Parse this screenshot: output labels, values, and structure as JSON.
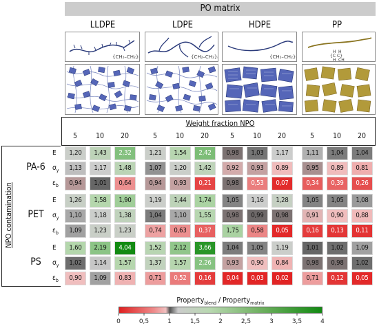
{
  "header": {
    "title": "PO matrix"
  },
  "matrices": [
    {
      "name": "LLDPE",
      "color": "#2a3a7a",
      "fill": "#5566b8",
      "formula": "{CH₂–CH₂}ₙ"
    },
    {
      "name": "LDPE",
      "color": "#2a3a7a",
      "fill": "#5566b8",
      "formula": "{CH₂–CH₂}ₙ"
    },
    {
      "name": "HDPE",
      "color": "#2a3a7a",
      "fill": "#5566b8",
      "formula": "{CH₂–CH₂}ₙ"
    },
    {
      "name": "PP",
      "color": "#8a7420",
      "fill": "#b29a3a",
      "formula": ""
    }
  ],
  "weight_fraction_title": "Weight fraction NPO",
  "weight_fractions": [
    "5",
    "10",
    "20"
  ],
  "y_axis_title": "NPO contamination",
  "contaminants": [
    "PA-6",
    "PET",
    "PS"
  ],
  "properties": [
    "E",
    "σ",
    "ε"
  ],
  "property_subscripts": [
    "",
    "y",
    "b"
  ],
  "table": [
    [
      [
        "1,20",
        "1,43",
        "2,32"
      ],
      [
        "1,21",
        "1,54",
        "2,42"
      ],
      [
        "0,98",
        "1,03",
        "1,17"
      ],
      [
        "1,11",
        "1,04",
        "1,04"
      ]
    ],
    [
      [
        "1,13",
        "1,17",
        "1,48"
      ],
      [
        "1,07",
        "1,20",
        "1,42"
      ],
      [
        "0,92",
        "0,93",
        "0,89"
      ],
      [
        "0,95",
        "0,89",
        "0,81"
      ]
    ],
    [
      [
        "0,94",
        "1,01",
        "0,64"
      ],
      [
        "0,94",
        "0,93",
        "0,21"
      ],
      [
        "0,98",
        "0,53",
        "0,07"
      ],
      [
        "0,34",
        "0,39",
        "0,26"
      ]
    ],
    [
      [
        "1,26",
        "1,58",
        "1,90"
      ],
      [
        "1,19",
        "1,44",
        "1,74"
      ],
      [
        "1,05",
        "1,16",
        "1,28"
      ],
      [
        "1,05",
        "1,05",
        "1,08"
      ]
    ],
    [
      [
        "1,10",
        "1,18",
        "1,38"
      ],
      [
        "1,04",
        "1,10",
        "1,55"
      ],
      [
        "0,98",
        "0,99",
        "0,98"
      ],
      [
        "0,91",
        "0,90",
        "0,88"
      ]
    ],
    [
      [
        "1,09",
        "1,23",
        "1,23"
      ],
      [
        "0,74",
        "0,63",
        "0,37"
      ],
      [
        "1,75",
        "0,58",
        "0,05"
      ],
      [
        "0,16",
        "0,13",
        "0,11"
      ]
    ],
    [
      [
        "1,60",
        "2,19",
        "4,04"
      ],
      [
        "1,52",
        "2,12",
        "3,66"
      ],
      [
        "1,04",
        "1,05",
        "1,19"
      ],
      [
        "1,01",
        "1,02",
        "1,09"
      ]
    ],
    [
      [
        "1,02",
        "1,14",
        "1,57"
      ],
      [
        "1,37",
        "1,57",
        "2,26"
      ],
      [
        "0,93",
        "0,90",
        "0,84"
      ],
      [
        "0,98",
        "0,98",
        "1,02"
      ]
    ],
    [
      [
        "0,90",
        "1,09",
        "0,83"
      ],
      [
        "0,71",
        "0,52",
        "0,16"
      ],
      [
        "0,04",
        "0,03",
        "0,02"
      ],
      [
        "0,71",
        "0,12",
        "0,05"
      ]
    ]
  ],
  "colorbar": {
    "label_main": "Property",
    "label_sub1": "blend",
    "label_sep": " / Property",
    "label_sub2": "matrix",
    "ticks": [
      "0",
      "0,5",
      "1",
      "1,5",
      "2",
      "2,5",
      "3",
      "3,5",
      "4"
    ],
    "min": 0,
    "max": 4
  }
}
